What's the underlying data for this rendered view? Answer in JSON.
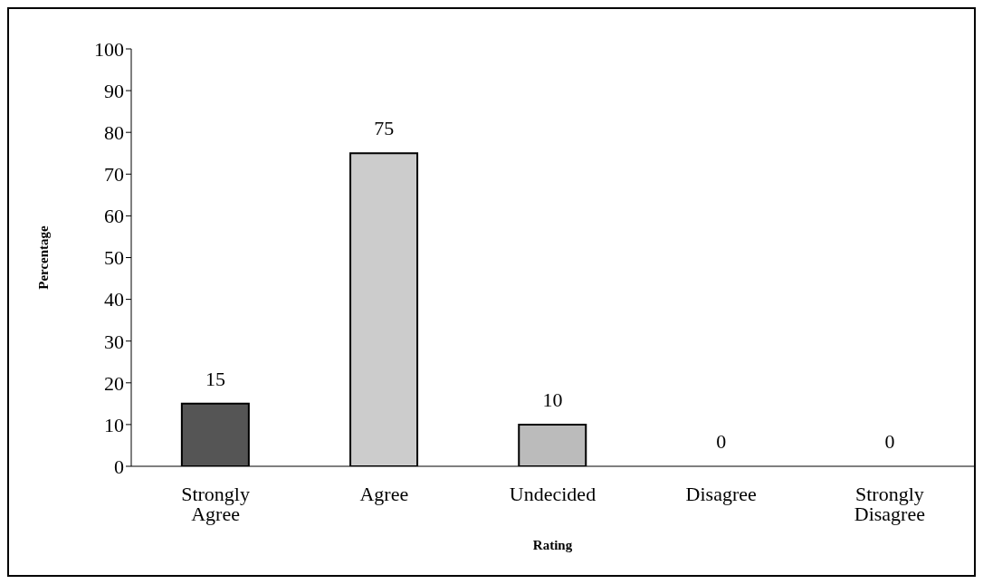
{
  "chart_data": {
    "type": "bar",
    "xlabel": "Rating",
    "ylabel": "Percentage",
    "categories": [
      "Strongly Agree",
      "Agree",
      "Undecided",
      "Disagree",
      "Strongly Disagree"
    ],
    "values": [
      15,
      75,
      10,
      0,
      0
    ],
    "colors": [
      "#555555",
      "#cccccc",
      "#bbbbbb",
      "#bbbbbb",
      "#bbbbbb"
    ],
    "ylim": [
      0,
      100
    ],
    "yticks": [
      0,
      10,
      20,
      30,
      40,
      50,
      60,
      70,
      80,
      90,
      100
    ],
    "grid": false,
    "legend": false,
    "data_labels": true
  }
}
